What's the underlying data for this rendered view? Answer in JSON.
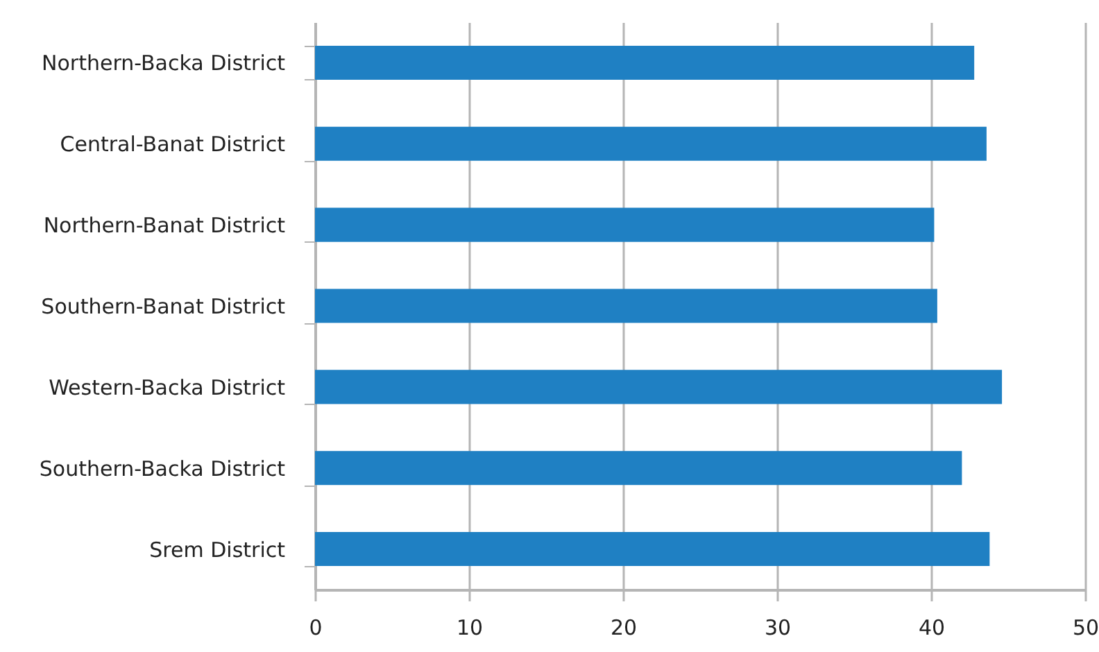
{
  "chart_data": {
    "type": "bar",
    "orientation": "horizontal",
    "categories": [
      "Northern-Backa District",
      "Central-Banat District",
      "Northern-Banat District",
      "Southern-Banat District",
      "Western-Backa District",
      "Southern-Backa District",
      "Srem District"
    ],
    "values": [
      42.8,
      43.6,
      40.2,
      40.4,
      44.6,
      42.0,
      43.8
    ],
    "color": "#1f80c3",
    "xlim": [
      0,
      50
    ],
    "xticks": [
      0,
      10,
      20,
      30,
      40,
      50
    ],
    "grid": "x"
  }
}
